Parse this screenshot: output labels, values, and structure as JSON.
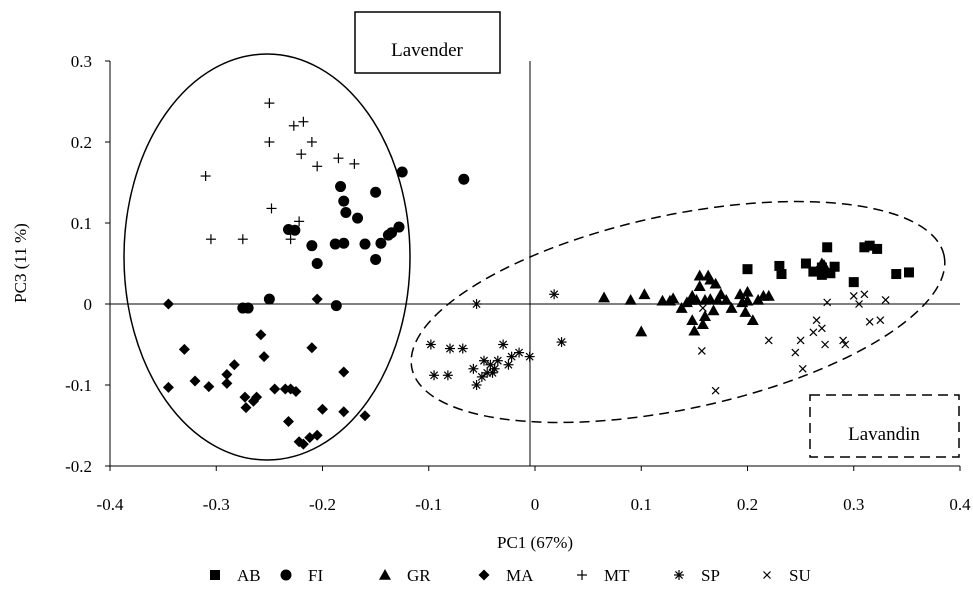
{
  "chart_data": {
    "type": "scatter",
    "title": "",
    "xlabel": "PC1 (67%)",
    "ylabel": "PC3 (11 %)",
    "xlim": [
      -0.4,
      0.4
    ],
    "ylim": [
      -0.2,
      0.3
    ],
    "x_ticks": [
      "-0.4",
      "-0.3",
      "-0.2",
      "-0.1",
      "0",
      "0.1",
      "0.2",
      "0.3",
      "0.4"
    ],
    "x_tick_values": [
      -0.4,
      -0.3,
      -0.2,
      -0.1,
      0,
      0.1,
      0.2,
      0.3,
      0.4
    ],
    "y_ticks": [
      "0.3",
      "0.2",
      "0.1",
      "0",
      "-0.1",
      "-0.2"
    ],
    "y_tick_values": [
      0.3,
      0.2,
      0.1,
      0,
      -0.1,
      -0.2
    ],
    "grid": false,
    "legend_position": "bottom",
    "group_labels": [
      "Lavender",
      "Lavandin"
    ],
    "series": [
      {
        "name": "AB",
        "marker": "square",
        "points": [
          [
            0.2,
            0.043
          ],
          [
            0.23,
            0.047
          ],
          [
            0.232,
            0.037
          ],
          [
            0.255,
            0.05
          ],
          [
            0.262,
            0.04
          ],
          [
            0.27,
            0.036
          ],
          [
            0.27,
            0.045
          ],
          [
            0.275,
            0.07
          ],
          [
            0.278,
            0.038
          ],
          [
            0.282,
            0.046
          ],
          [
            0.3,
            0.027
          ],
          [
            0.31,
            0.07
          ],
          [
            0.315,
            0.072
          ],
          [
            0.322,
            0.068
          ],
          [
            0.34,
            0.037
          ],
          [
            0.352,
            0.039
          ]
        ]
      },
      {
        "name": "FI",
        "marker": "circle",
        "points": [
          [
            -0.125,
            0.163
          ],
          [
            -0.067,
            0.154
          ],
          [
            -0.183,
            0.145
          ],
          [
            -0.15,
            0.138
          ],
          [
            -0.18,
            0.127
          ],
          [
            -0.167,
            0.106
          ],
          [
            -0.178,
            0.113
          ],
          [
            -0.128,
            0.095
          ],
          [
            -0.232,
            0.092
          ],
          [
            -0.226,
            0.091
          ],
          [
            -0.135,
            0.088
          ],
          [
            -0.138,
            0.085
          ],
          [
            -0.188,
            0.074
          ],
          [
            -0.18,
            0.075
          ],
          [
            -0.16,
            0.074
          ],
          [
            -0.145,
            0.075
          ],
          [
            -0.21,
            0.072
          ],
          [
            -0.15,
            0.055
          ],
          [
            -0.205,
            0.05
          ],
          [
            -0.25,
            0.006
          ],
          [
            -0.187,
            -0.002
          ],
          [
            -0.275,
            -0.005
          ],
          [
            -0.27,
            -0.005
          ]
        ]
      },
      {
        "name": "GR",
        "marker": "triangle",
        "points": [
          [
            0.065,
            0.008
          ],
          [
            0.09,
            0.005
          ],
          [
            0.103,
            0.012
          ],
          [
            0.1,
            -0.034
          ],
          [
            0.12,
            0.004
          ],
          [
            0.127,
            0.004
          ],
          [
            0.13,
            0.007
          ],
          [
            0.138,
            -0.005
          ],
          [
            0.143,
            0.002
          ],
          [
            0.147,
            0.005
          ],
          [
            0.148,
            0.01
          ],
          [
            0.148,
            -0.02
          ],
          [
            0.15,
            -0.033
          ],
          [
            0.152,
            0.005
          ],
          [
            0.155,
            0.035
          ],
          [
            0.155,
            0.022
          ],
          [
            0.158,
            -0.025
          ],
          [
            0.16,
            0.005
          ],
          [
            0.16,
            -0.015
          ],
          [
            0.163,
            0.035
          ],
          [
            0.165,
            0.03
          ],
          [
            0.165,
            0.006
          ],
          [
            0.168,
            -0.008
          ],
          [
            0.17,
            0.025
          ],
          [
            0.172,
            0.005
          ],
          [
            0.175,
            0.012
          ],
          [
            0.18,
            0.005
          ],
          [
            0.185,
            -0.005
          ],
          [
            0.193,
            0.012
          ],
          [
            0.195,
            0.002
          ],
          [
            0.198,
            -0.01
          ],
          [
            0.2,
            0.015
          ],
          [
            0.2,
            0.004
          ],
          [
            0.205,
            -0.02
          ],
          [
            0.21,
            0.005
          ],
          [
            0.215,
            0.01
          ],
          [
            0.22,
            0.01
          ],
          [
            0.27,
            0.05
          ],
          [
            0.272,
            0.048
          ],
          [
            0.265,
            0.04
          ]
        ]
      },
      {
        "name": "MA",
        "marker": "diamond",
        "points": [
          [
            -0.345,
            0.0
          ],
          [
            -0.33,
            -0.056
          ],
          [
            -0.345,
            -0.103
          ],
          [
            -0.32,
            -0.095
          ],
          [
            -0.307,
            -0.102
          ],
          [
            -0.29,
            -0.087
          ],
          [
            -0.29,
            -0.098
          ],
          [
            -0.283,
            -0.075
          ],
          [
            -0.273,
            -0.115
          ],
          [
            -0.272,
            -0.128
          ],
          [
            -0.265,
            -0.12
          ],
          [
            -0.262,
            -0.115
          ],
          [
            -0.258,
            -0.038
          ],
          [
            -0.255,
            -0.065
          ],
          [
            -0.245,
            -0.105
          ],
          [
            -0.235,
            -0.105
          ],
          [
            -0.23,
            -0.105
          ],
          [
            -0.225,
            -0.108
          ],
          [
            -0.232,
            -0.145
          ],
          [
            -0.222,
            -0.17
          ],
          [
            -0.218,
            -0.173
          ],
          [
            -0.212,
            -0.165
          ],
          [
            -0.205,
            -0.162
          ],
          [
            -0.2,
            -0.13
          ],
          [
            -0.21,
            -0.054
          ],
          [
            -0.205,
            0.006
          ],
          [
            -0.18,
            -0.084
          ],
          [
            -0.18,
            -0.133
          ],
          [
            -0.16,
            -0.138
          ]
        ]
      },
      {
        "name": "MT",
        "marker": "plus",
        "points": [
          [
            -0.25,
            0.248
          ],
          [
            -0.218,
            0.225
          ],
          [
            -0.227,
            0.22
          ],
          [
            -0.21,
            0.2
          ],
          [
            -0.25,
            0.2
          ],
          [
            -0.205,
            0.17
          ],
          [
            -0.22,
            0.185
          ],
          [
            -0.185,
            0.18
          ],
          [
            -0.17,
            0.173
          ],
          [
            -0.31,
            0.158
          ],
          [
            -0.248,
            0.118
          ],
          [
            -0.222,
            0.102
          ],
          [
            -0.305,
            0.08
          ],
          [
            -0.275,
            0.08
          ],
          [
            -0.23,
            0.08
          ]
        ]
      },
      {
        "name": "SP",
        "marker": "asterisk",
        "points": [
          [
            -0.098,
            -0.05
          ],
          [
            -0.095,
            -0.088
          ],
          [
            -0.082,
            -0.088
          ],
          [
            -0.08,
            -0.055
          ],
          [
            -0.068,
            -0.055
          ],
          [
            -0.058,
            -0.08
          ],
          [
            -0.055,
            -0.1
          ],
          [
            -0.05,
            -0.09
          ],
          [
            -0.048,
            -0.07
          ],
          [
            -0.045,
            -0.085
          ],
          [
            -0.042,
            -0.075
          ],
          [
            -0.04,
            -0.085
          ],
          [
            -0.038,
            -0.08
          ],
          [
            -0.035,
            -0.07
          ],
          [
            -0.03,
            -0.05
          ],
          [
            -0.025,
            -0.075
          ],
          [
            -0.022,
            -0.065
          ],
          [
            -0.015,
            -0.06
          ],
          [
            -0.005,
            -0.065
          ],
          [
            -0.055,
            0.0
          ],
          [
            0.018,
            0.012
          ],
          [
            0.025,
            -0.047
          ]
        ]
      },
      {
        "name": "SU",
        "marker": "cross",
        "points": [
          [
            0.158,
            -0.005
          ],
          [
            0.157,
            -0.058
          ],
          [
            0.17,
            -0.107
          ],
          [
            0.22,
            -0.045
          ],
          [
            0.245,
            -0.06
          ],
          [
            0.25,
            -0.045
          ],
          [
            0.252,
            -0.08
          ],
          [
            0.262,
            -0.035
          ],
          [
            0.265,
            -0.02
          ],
          [
            0.27,
            -0.03
          ],
          [
            0.273,
            -0.05
          ],
          [
            0.275,
            0.002
          ],
          [
            0.29,
            -0.045
          ],
          [
            0.292,
            -0.05
          ],
          [
            0.3,
            0.01
          ],
          [
            0.305,
            0.0
          ],
          [
            0.31,
            0.012
          ],
          [
            0.315,
            -0.022
          ],
          [
            0.325,
            -0.02
          ],
          [
            0.33,
            0.005
          ]
        ]
      }
    ]
  },
  "colors": {
    "marker": "#000000",
    "background": "#ffffff"
  },
  "legend_items": [
    {
      "label": "AB",
      "icon": "square-icon"
    },
    {
      "label": "FI",
      "icon": "circle-icon"
    },
    {
      "label": "GR",
      "icon": "triangle-icon"
    },
    {
      "label": "MA",
      "icon": "diamond-icon"
    },
    {
      "label": "MT",
      "icon": "plus-icon"
    },
    {
      "label": "SP",
      "icon": "asterisk-icon"
    },
    {
      "label": "SU",
      "icon": "cross-icon"
    }
  ]
}
